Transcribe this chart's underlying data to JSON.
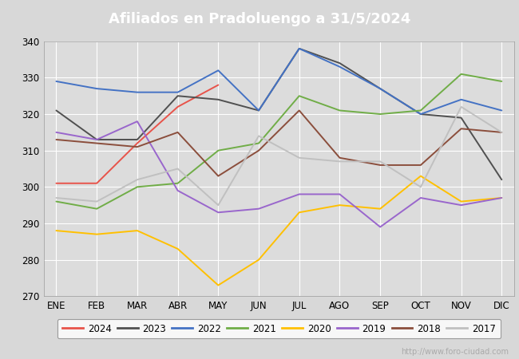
{
  "title": "Afiliados en Pradoluengo a 31/5/2024",
  "title_color": "#ffffff",
  "title_bg_color": "#4a86c8",
  "ylim": [
    270,
    340
  ],
  "yticks": [
    270,
    280,
    290,
    300,
    310,
    320,
    330,
    340
  ],
  "months": [
    "ENE",
    "FEB",
    "MAR",
    "ABR",
    "MAY",
    "JUN",
    "JUL",
    "AGO",
    "SEP",
    "OCT",
    "NOV",
    "DIC"
  ],
  "watermark": "http://www.foro-ciudad.com",
  "series": {
    "2024": {
      "color": "#e8534a",
      "data": [
        301,
        301,
        312,
        322,
        328,
        null,
        null,
        null,
        null,
        null,
        null,
        null
      ]
    },
    "2023": {
      "color": "#505050",
      "data": [
        321,
        313,
        313,
        325,
        324,
        321,
        338,
        334,
        327,
        320,
        319,
        302
      ]
    },
    "2022": {
      "color": "#4472c4",
      "data": [
        329,
        327,
        326,
        326,
        332,
        321,
        338,
        333,
        327,
        320,
        324,
        321
      ]
    },
    "2021": {
      "color": "#70ad47",
      "data": [
        296,
        294,
        300,
        301,
        310,
        312,
        325,
        321,
        320,
        321,
        331,
        329
      ]
    },
    "2020": {
      "color": "#ffc000",
      "data": [
        288,
        287,
        288,
        283,
        273,
        280,
        293,
        295,
        294,
        303,
        296,
        297
      ]
    },
    "2019": {
      "color": "#9966cc",
      "data": [
        315,
        313,
        318,
        299,
        293,
        294,
        298,
        298,
        289,
        297,
        295,
        297
      ]
    },
    "2018": {
      "color": "#8b4e3c",
      "data": [
        313,
        312,
        311,
        315,
        303,
        310,
        321,
        308,
        306,
        306,
        316,
        315
      ]
    },
    "2017": {
      "color": "#c0c0c0",
      "data": [
        297,
        296,
        302,
        305,
        295,
        314,
        308,
        307,
        307,
        300,
        322,
        315
      ]
    }
  },
  "fig_bg_color": "#d8d8d8",
  "plot_bg_color": "#dcdcdc",
  "grid_color": "#ffffff",
  "legend_order": [
    "2024",
    "2023",
    "2022",
    "2021",
    "2020",
    "2019",
    "2018",
    "2017"
  ]
}
